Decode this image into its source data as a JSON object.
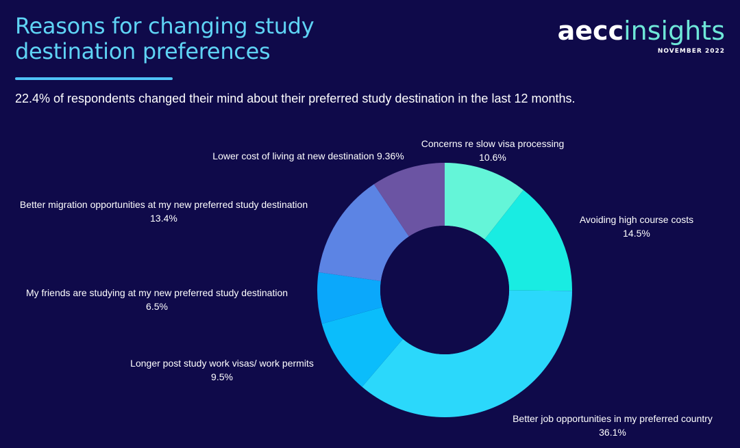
{
  "header": {
    "title_line1": "Reasons for changing study",
    "title_line2": "destination preferences",
    "subtitle": "22.4% of respondents changed their mind about their preferred study destination in the last 12 months."
  },
  "logo": {
    "brand": "aecc",
    "product": "insights",
    "date": "NOVEMBER 2022"
  },
  "colors": {
    "background": "#0f0a4a",
    "title": "#5fd4f5",
    "text": "#ffffff"
  },
  "chart_data": {
    "type": "pie",
    "donut": true,
    "legend": "none",
    "title": "",
    "slices": [
      {
        "label": "Concerns re slow visa processing",
        "value": 10.6,
        "display": "10.6%",
        "color": "#64f5d8"
      },
      {
        "label": "Avoiding high course costs",
        "value": 14.5,
        "display": "14.5%",
        "color": "#19ece2"
      },
      {
        "label": "Better job opportunities in my preferred country",
        "value": 36.1,
        "display": "36.1%",
        "color": "#2bd8fb"
      },
      {
        "label": "Longer post study work visas/ work permits",
        "value": 9.5,
        "display": "9.5%",
        "color": "#0bbdfb"
      },
      {
        "label": "My friends are studying at my new preferred study destination",
        "value": 6.5,
        "display": "6.5%",
        "color": "#0ba8fb"
      },
      {
        "label": "Better migration opportunities at my new preferred study destination",
        "value": 13.4,
        "display": "13.4%",
        "color": "#5c84e4"
      },
      {
        "label": "Lower cost of living at new destination",
        "value": 9.36,
        "display": "9.36%",
        "color": "#6b54a3"
      }
    ]
  }
}
